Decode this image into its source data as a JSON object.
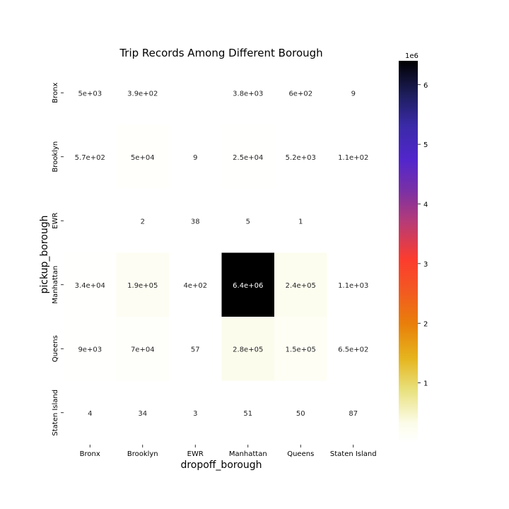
{
  "chart_data": {
    "type": "heatmap",
    "title": "Trip Records Among Different Borough",
    "xlabel": "dropoff_borough",
    "ylabel": "pickup_borough",
    "x_categories": [
      "Bronx",
      "Brooklyn",
      "EWR",
      "Manhattan",
      "Queens",
      "Staten Island"
    ],
    "y_categories": [
      "Bronx",
      "Brooklyn",
      "EWR",
      "Manhattan",
      "Queens",
      "Staten Island"
    ],
    "values": [
      [
        5000,
        390,
        null,
        3800,
        600,
        9
      ],
      [
        570,
        50000,
        9,
        25000,
        5200,
        110
      ],
      [
        null,
        2,
        38,
        5,
        1,
        null
      ],
      [
        34000,
        190000,
        400,
        6400000,
        240000,
        1100
      ],
      [
        9000,
        70000,
        57,
        280000,
        150000,
        650
      ],
      [
        4,
        34,
        3,
        51,
        50,
        87
      ]
    ],
    "annotations": [
      [
        "5e+03",
        "3.9e+02",
        "",
        "3.8e+03",
        "6e+02",
        "9"
      ],
      [
        "5.7e+02",
        "5e+04",
        "9",
        "2.5e+04",
        "5.2e+03",
        "1.1e+02"
      ],
      [
        "",
        "2",
        "38",
        "5",
        "1",
        ""
      ],
      [
        "3.4e+04",
        "1.9e+05",
        "4e+02",
        "6.4e+06",
        "2.4e+05",
        "1.1e+03"
      ],
      [
        "9e+03",
        "7e+04",
        "57",
        "2.8e+05",
        "1.5e+05",
        "6.5e+02"
      ],
      [
        "4",
        "34",
        "3",
        "51",
        "50",
        "87"
      ]
    ],
    "colormap": "CMRmap_r",
    "colorbar": {
      "offset_label": "1e6",
      "ticks": [
        1,
        2,
        3,
        4,
        5,
        6
      ],
      "range": [
        0,
        6.4
      ],
      "scale_factor": 1000000
    }
  }
}
